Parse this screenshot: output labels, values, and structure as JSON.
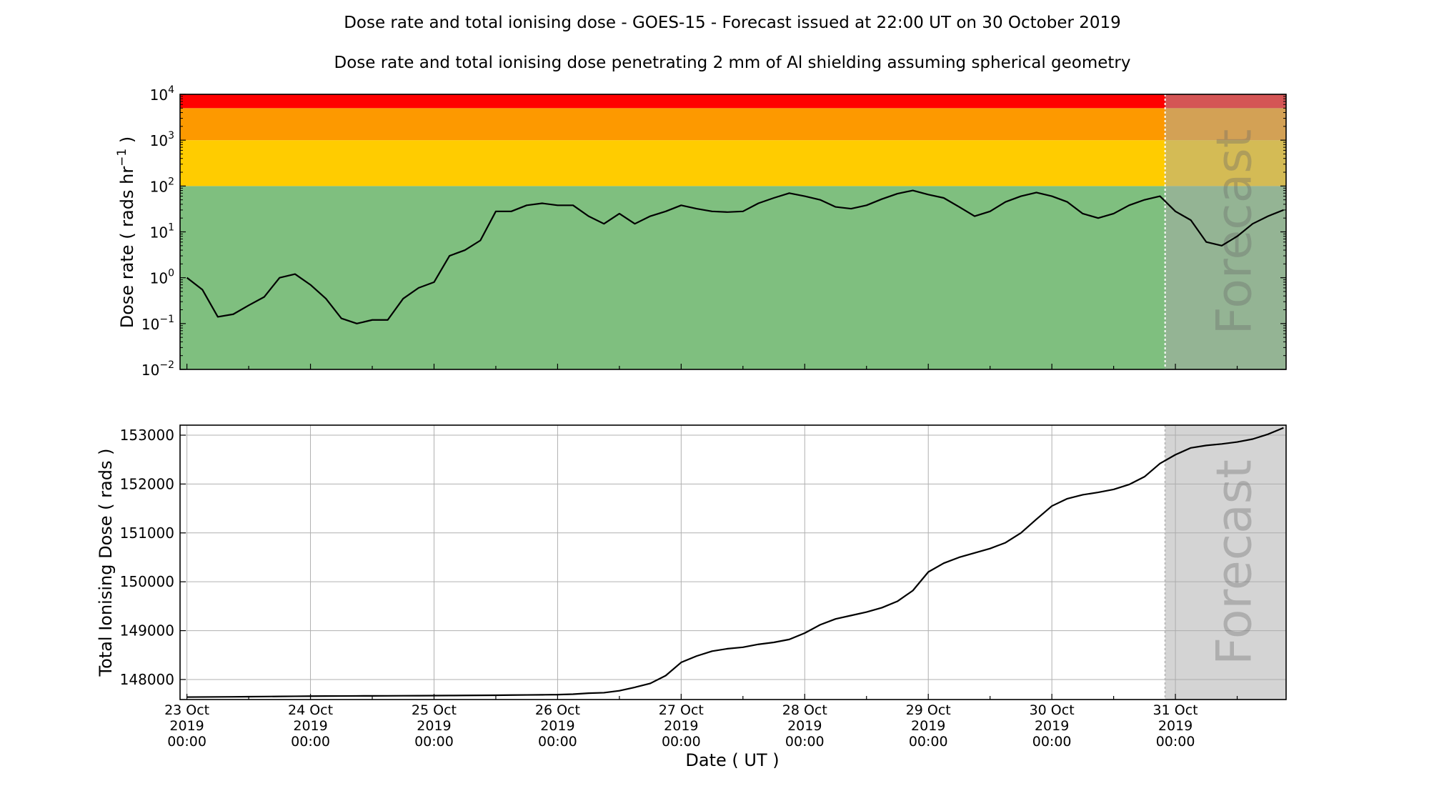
{
  "title": "Dose rate and total ionising dose - GOES-15 - Forecast issued at 22:00 UT on 30 October 2019",
  "subtitle": "Dose rate and total ionising dose penetrating 2 mm of Al shielding assuming spherical geometry",
  "forecast_label": "Forecast",
  "chart_data": [
    {
      "type": "line",
      "ylabel": "Dose rate ( rads hr",
      "ylabel_sup": "−1",
      "ylabel_end": " )",
      "yscale": "log",
      "ylim": [
        0.01,
        10000
      ],
      "yticks": [
        {
          "base": "10",
          "exp": "−2"
        },
        {
          "base": "10",
          "exp": "−1"
        },
        {
          "base": "10",
          "exp": "0"
        },
        {
          "base": "10",
          "exp": "1"
        },
        {
          "base": "10",
          "exp": "2"
        },
        {
          "base": "10",
          "exp": "3"
        },
        {
          "base": "10",
          "exp": "4"
        }
      ],
      "xlim": [
        "2019-10-22T22:40",
        "2019-10-31T21:30"
      ],
      "forecast_start": "2019-10-30T22:00",
      "grid": false,
      "threshold_bands": [
        {
          "from": 0.01,
          "to": 100,
          "color": "#7fbf7f"
        },
        {
          "from": 100,
          "to": 1000,
          "color": "#ffcc00"
        },
        {
          "from": 1000,
          "to": 5000,
          "color": "#fd9900"
        },
        {
          "from": 5000,
          "to": 10000,
          "color": "#ff0000"
        }
      ],
      "x_start": "2019-10-23T00:00",
      "x_step_hours": 3,
      "values": [
        1.0,
        0.55,
        0.14,
        0.16,
        0.25,
        0.38,
        1.0,
        1.2,
        0.7,
        0.35,
        0.13,
        0.1,
        0.12,
        0.12,
        0.35,
        0.6,
        0.8,
        3.0,
        4.0,
        6.5,
        28,
        28,
        38,
        42,
        38,
        38,
        22,
        15,
        25,
        15,
        22,
        28,
        38,
        32,
        28,
        27,
        28,
        42,
        55,
        70,
        60,
        50,
        35,
        32,
        38,
        52,
        68,
        80,
        65,
        55,
        35,
        22,
        28,
        45,
        60,
        72,
        60,
        45,
        25,
        20,
        25,
        38,
        50,
        60,
        28,
        18,
        6,
        5,
        8,
        15,
        22,
        30
      ]
    },
    {
      "type": "line",
      "ylabel": "Total Ionising Dose ( rads )",
      "xlabel": "Date ( UT )",
      "ylim": [
        147590,
        153205
      ],
      "yticks": [
        148000,
        149000,
        150000,
        151000,
        152000,
        153000
      ],
      "xlim": [
        "2019-10-22T22:40",
        "2019-10-31T21:30"
      ],
      "forecast_start": "2019-10-30T22:00",
      "grid": true,
      "xticks": [
        {
          "date": "23 Oct",
          "year": "2019",
          "time": "00:00"
        },
        {
          "date": "24 Oct",
          "year": "2019",
          "time": "00:00"
        },
        {
          "date": "25 Oct",
          "year": "2019",
          "time": "00:00"
        },
        {
          "date": "26 Oct",
          "year": "2019",
          "time": "00:00"
        },
        {
          "date": "27 Oct",
          "year": "2019",
          "time": "00:00"
        },
        {
          "date": "28 Oct",
          "year": "2019",
          "time": "00:00"
        },
        {
          "date": "29 Oct",
          "year": "2019",
          "time": "00:00"
        },
        {
          "date": "30 Oct",
          "year": "2019",
          "time": "00:00"
        },
        {
          "date": "31 Oct",
          "year": "2019",
          "time": "00:00"
        }
      ],
      "x_start": "2019-10-23T00:00",
      "x_step_hours": 3,
      "values": [
        147640,
        147642,
        147644,
        147646,
        147648,
        147651,
        147654,
        147657,
        147660,
        147661,
        147662,
        147664,
        147665,
        147666,
        147668,
        147669,
        147670,
        147672,
        147674,
        147676,
        147678,
        147681,
        147684,
        147687,
        147690,
        147700,
        147720,
        147730,
        147770,
        147840,
        147920,
        148080,
        148350,
        148480,
        148580,
        148630,
        148660,
        148720,
        148760,
        148820,
        148950,
        149120,
        149240,
        149310,
        149380,
        149470,
        149600,
        149820,
        150200,
        150380,
        150500,
        150590,
        150680,
        150800,
        151000,
        151280,
        151550,
        151700,
        151780,
        151830,
        151890,
        151990,
        152150,
        152420,
        152600,
        152740,
        152790,
        152820,
        152860,
        152920,
        153020,
        153150
      ]
    }
  ]
}
